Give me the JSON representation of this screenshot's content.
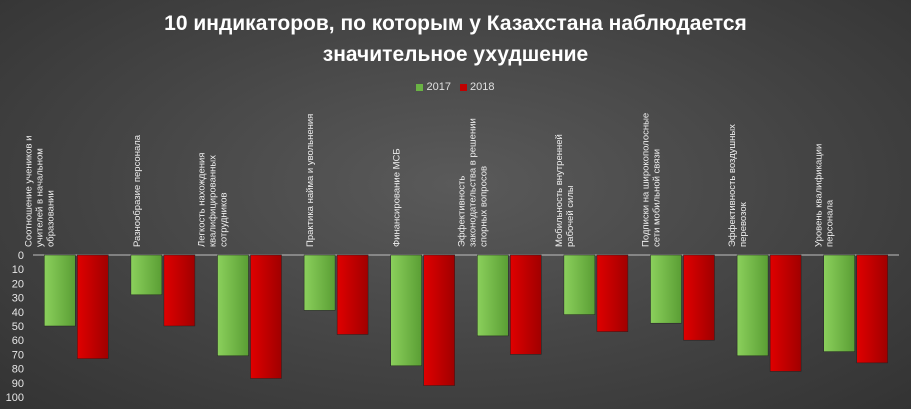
{
  "chart_data": {
    "type": "bar",
    "title_lines": [
      "10 индикаторов, по которым у Казахстана наблюдается",
      "значительное ухудшение"
    ],
    "categories": [
      [
        "Соотношение учеников и",
        "учителей в начальном",
        "образовании"
      ],
      [
        "Разнообразие персонала"
      ],
      [
        "Легкость нахождения",
        "квалифицированных",
        "сотрудников"
      ],
      [
        "Практика найма и увольнения"
      ],
      [
        "Финансирование МСБ"
      ],
      [
        "Эффективность",
        "законодательства в решении",
        "спорных вопросов"
      ],
      [
        "Мобильность внутренней",
        "рабочей силы"
      ],
      [
        "Подписки на широкополосные",
        "сети мобильной связи"
      ],
      [
        "Эффективность воздушных",
        "перевозок"
      ],
      [
        "Уровень квалификации",
        "персонала"
      ]
    ],
    "series": [
      {
        "name": "2017",
        "color": "#6ab344",
        "values": [
          50,
          28,
          71,
          39,
          78,
          57,
          42,
          48,
          71,
          68
        ]
      },
      {
        "name": "2018",
        "color": "#c00000",
        "values": [
          73,
          50,
          87,
          56,
          92,
          70,
          54,
          60,
          82,
          76
        ]
      }
    ],
    "y_axis": {
      "min": 0,
      "max": 100,
      "step": 10,
      "inverted": true,
      "ticks": [
        "0",
        "10",
        "20",
        "30",
        "40",
        "50",
        "60",
        "70",
        "80",
        "90",
        "100"
      ]
    },
    "legend_position": "top-center",
    "grid": false
  }
}
